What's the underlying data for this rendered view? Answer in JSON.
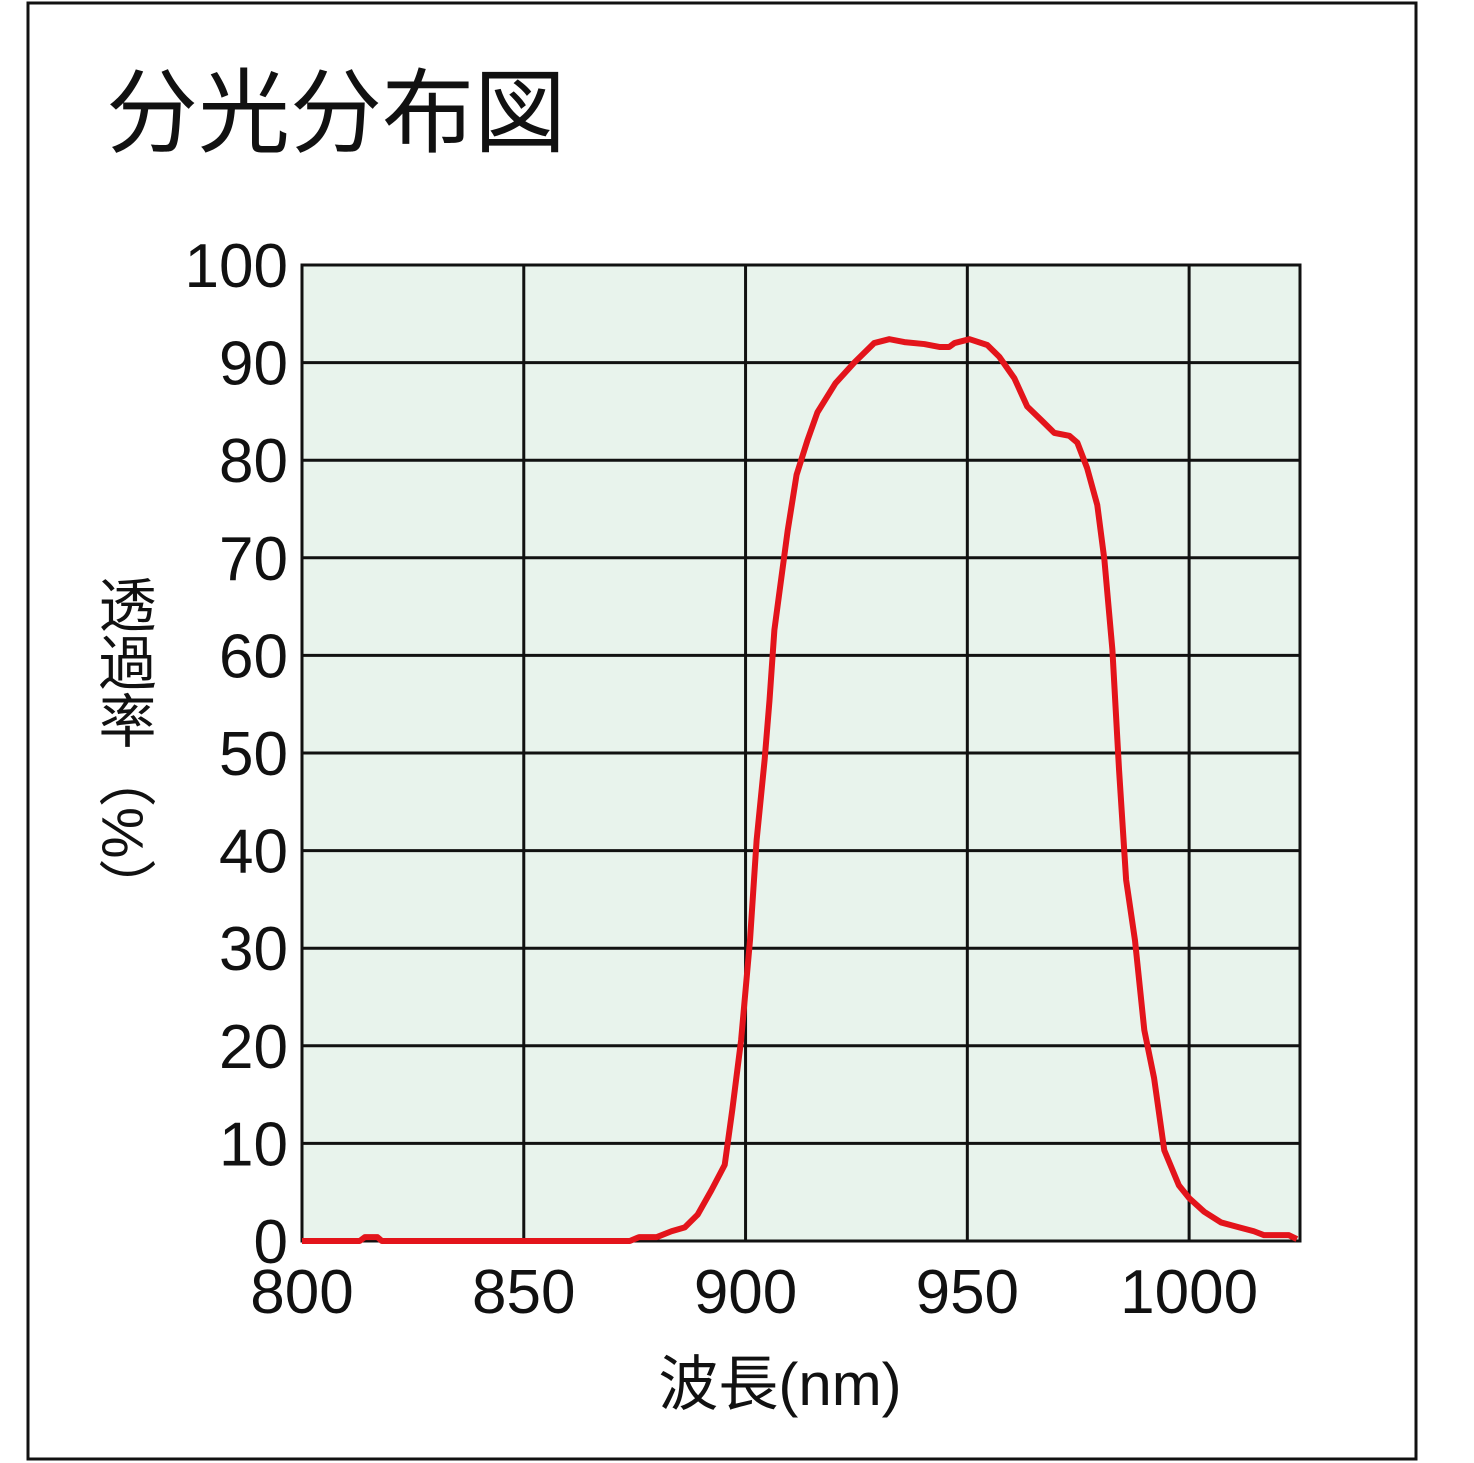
{
  "chart_data": {
    "type": "line",
    "title": "分光分布図",
    "x_label": "波長(nm)",
    "y_label": "透過率（%）",
    "xlim": [
      800,
      1025
    ],
    "xticks": [
      800,
      850,
      900,
      950,
      1000
    ],
    "ylim": [
      0,
      100
    ],
    "yticks": [
      0,
      10,
      20,
      30,
      40,
      50,
      60,
      70,
      80,
      90,
      100
    ],
    "grid": true,
    "series": [
      {
        "color": "#e3141b",
        "x": [
          800,
          813,
          814.2,
          817,
          818,
          873.9,
          876,
          880,
          883.3,
          886.3,
          889.2,
          892.3,
          895.3,
          897,
          899,
          901,
          902.5,
          904.3,
          905.4,
          906.5,
          907.7,
          909.5,
          911.5,
          914,
          916.2,
          920.3,
          924.5,
          929,
          932.4,
          935.8,
          940.3,
          943.7,
          945.9,
          947.1,
          950.5,
          954.5,
          957.2,
          960.6,
          963.5,
          966.7,
          969.6,
          973,
          974.8,
          977,
          979.3,
          980.9,
          982.7,
          984.2,
          985.8,
          987.8,
          989.9,
          992.1,
          994.4,
          997.7,
          1000,
          1003.4,
          1007.2,
          1011.3,
          1014.6,
          1016.9,
          1022.5,
          1024.3
        ],
        "values": [
          0,
          0,
          0.4,
          0.4,
          0,
          0,
          0.4,
          0.4,
          1.0,
          1.4,
          2.7,
          5.2,
          7.8,
          13.4,
          20.6,
          30.8,
          41.1,
          49.3,
          55.4,
          62.6,
          66.7,
          72.8,
          78.5,
          82.1,
          84.9,
          87.9,
          90,
          92,
          92.4,
          92.1,
          91.9,
          91.6,
          91.6,
          92,
          92.4,
          91.8,
          90.6,
          88.4,
          85.5,
          84.1,
          82.8,
          82.5,
          81.8,
          79.2,
          75.4,
          69.8,
          60.6,
          48.3,
          37,
          30.8,
          21.6,
          16.7,
          9.3,
          5.7,
          4.4,
          3,
          1.9,
          1.4,
          1.0,
          0.6,
          0.6,
          0.2
        ]
      }
    ]
  }
}
